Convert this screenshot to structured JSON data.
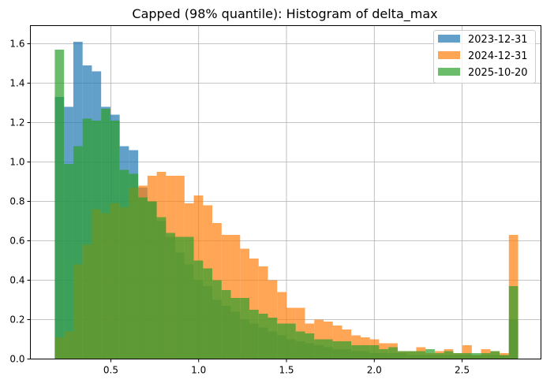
{
  "chart_data": {
    "type": "histogram",
    "title": "Capped (98% quantile): Histogram of delta_max",
    "xlabel": "",
    "ylabel": "",
    "xlim": [
      0.042,
      2.949
    ],
    "ylim": [
      0,
      1.692
    ],
    "grid": true,
    "legend_position": "top-right",
    "bin_start": 0.181,
    "bin_width": 0.05276,
    "x_ticks": [
      0.5,
      1.0,
      1.5,
      2.0,
      2.5
    ],
    "x_tick_labels": [
      "0.5",
      "1.0",
      "1.5",
      "2.0",
      "2.5"
    ],
    "y_ticks": [
      0,
      0.2,
      0.4,
      0.6,
      0.8,
      1.0,
      1.2,
      1.4,
      1.6
    ],
    "y_tick_labels": [
      "0.0",
      "0.2",
      "0.4",
      "0.6",
      "0.8",
      "1.0",
      "1.2",
      "1.4",
      "1.6"
    ],
    "series": [
      {
        "name": "2023-12-31",
        "color": "#1f77b4",
        "values": [
          1.33,
          1.28,
          1.61,
          1.49,
          1.46,
          1.28,
          1.24,
          1.08,
          1.06,
          0.87,
          0.8,
          0.7,
          0.62,
          0.54,
          0.48,
          0.4,
          0.37,
          0.3,
          0.27,
          0.24,
          0.2,
          0.18,
          0.16,
          0.14,
          0.12,
          0.1,
          0.09,
          0.08,
          0.07,
          0.06,
          0.05,
          0.05,
          0.04,
          0.04,
          0.03,
          0.03,
          0.03,
          0.03,
          0.02,
          0.02,
          0.02,
          0.02,
          0.02,
          0.02,
          0.02,
          0.02,
          0.02,
          0.02,
          0.02,
          0.2
        ]
      },
      {
        "name": "2024-12-31",
        "color": "#ff7f0e",
        "values": [
          0.11,
          0.14,
          0.48,
          0.58,
          0.76,
          0.74,
          0.79,
          0.77,
          0.87,
          0.88,
          0.93,
          0.95,
          0.93,
          0.93,
          0.79,
          0.83,
          0.78,
          0.69,
          0.63,
          0.63,
          0.56,
          0.51,
          0.47,
          0.4,
          0.34,
          0.26,
          0.26,
          0.18,
          0.2,
          0.19,
          0.17,
          0.15,
          0.12,
          0.11,
          0.1,
          0.08,
          0.08,
          0.04,
          0.04,
          0.06,
          0.03,
          0.04,
          0.05,
          0.03,
          0.07,
          0.02,
          0.05,
          0.04,
          0.03,
          0.63
        ]
      },
      {
        "name": "2025-10-20",
        "color": "#2ca02c",
        "values": [
          1.57,
          0.99,
          1.08,
          1.22,
          1.21,
          1.27,
          1.21,
          0.96,
          0.94,
          0.82,
          0.8,
          0.72,
          0.64,
          0.62,
          0.62,
          0.5,
          0.46,
          0.4,
          0.35,
          0.31,
          0.31,
          0.25,
          0.23,
          0.21,
          0.18,
          0.18,
          0.14,
          0.13,
          0.1,
          0.1,
          0.09,
          0.09,
          0.07,
          0.07,
          0.07,
          0.05,
          0.06,
          0.04,
          0.04,
          0.04,
          0.05,
          0.03,
          0.04,
          0.03,
          0.03,
          0.03,
          0.03,
          0.04,
          0.02,
          0.37
        ]
      }
    ]
  }
}
